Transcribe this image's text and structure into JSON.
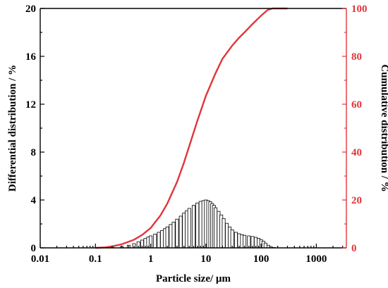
{
  "chart_data": {
    "type": "bar",
    "xlabel": "Particle size/ µm",
    "ylabel": "Differential distribution / %",
    "y2label": "Cumulative distribution / %",
    "x_scale": "log",
    "xlim": [
      0.01,
      3500
    ],
    "ylim": [
      0,
      20
    ],
    "y2lim": [
      0,
      100
    ],
    "x_ticks": [
      0.01,
      0.1,
      1,
      10,
      100,
      1000
    ],
    "x_tick_labels": [
      "0.01",
      "0.1",
      "1",
      "10",
      "100",
      "1000"
    ],
    "y_ticks": [
      0,
      4,
      8,
      12,
      16,
      20
    ],
    "y_tick_labels": [
      "0",
      "4",
      "8",
      "12",
      "16",
      "20"
    ],
    "y2_ticks": [
      0,
      20,
      40,
      60,
      80,
      100
    ],
    "y2_tick_labels": [
      "0",
      "20",
      "40",
      "60",
      "80",
      "100"
    ],
    "colors": {
      "cumulative": "#e0353a",
      "bars": "#000000"
    },
    "series": [
      {
        "type": "bar",
        "axis": "left",
        "x": [
          0.15,
          0.2,
          0.3,
          0.4,
          0.5,
          0.6,
          0.7,
          0.8,
          0.9,
          1.0,
          1.2,
          1.4,
          1.6,
          1.8,
          2.0,
          2.3,
          2.6,
          3.0,
          3.5,
          4.0,
          4.5,
          5.0,
          6.0,
          7.0,
          8.0,
          9.0,
          10.0,
          11.0,
          12.0,
          13.0,
          14.0,
          15.0,
          17.0,
          19.0,
          21.0,
          24.0,
          27.0,
          30.0,
          35.0,
          40.0,
          45.0,
          50.0,
          60.0,
          70.0,
          80.0,
          90.0,
          100.0,
          110.0,
          120.0,
          135.0,
          150.0,
          170.0
        ],
        "values": [
          0.02,
          0.05,
          0.12,
          0.22,
          0.35,
          0.5,
          0.65,
          0.78,
          0.9,
          1.0,
          1.15,
          1.3,
          1.45,
          1.6,
          1.75,
          1.95,
          2.15,
          2.4,
          2.65,
          2.9,
          3.1,
          3.3,
          3.55,
          3.75,
          3.88,
          3.95,
          4.0,
          3.95,
          3.85,
          3.7,
          3.55,
          3.35,
          3.05,
          2.75,
          2.45,
          2.05,
          1.75,
          1.5,
          1.3,
          1.18,
          1.1,
          1.05,
          1.0,
          0.95,
          0.88,
          0.8,
          0.68,
          0.55,
          0.4,
          0.22,
          0.1,
          0.03
        ]
      },
      {
        "type": "line",
        "axis": "right",
        "x": [
          0.1,
          0.15,
          0.2,
          0.3,
          0.5,
          0.7,
          1.0,
          1.5,
          2.0,
          3.0,
          4.0,
          5.0,
          7.0,
          10.0,
          15.0,
          20.0,
          30.0,
          40.0,
          50.0,
          70.0,
          100.0,
          130.0,
          160.0,
          200.0,
          300.0
        ],
        "values": [
          0.0,
          0.2,
          0.6,
          1.5,
          3.4,
          5.4,
          8.3,
          13.5,
          18.5,
          27.5,
          35.5,
          42.5,
          53.0,
          63.5,
          73.0,
          79.0,
          84.5,
          87.8,
          90.0,
          93.5,
          97.0,
          99.3,
          100.0,
          100.0,
          100.0
        ]
      }
    ]
  }
}
